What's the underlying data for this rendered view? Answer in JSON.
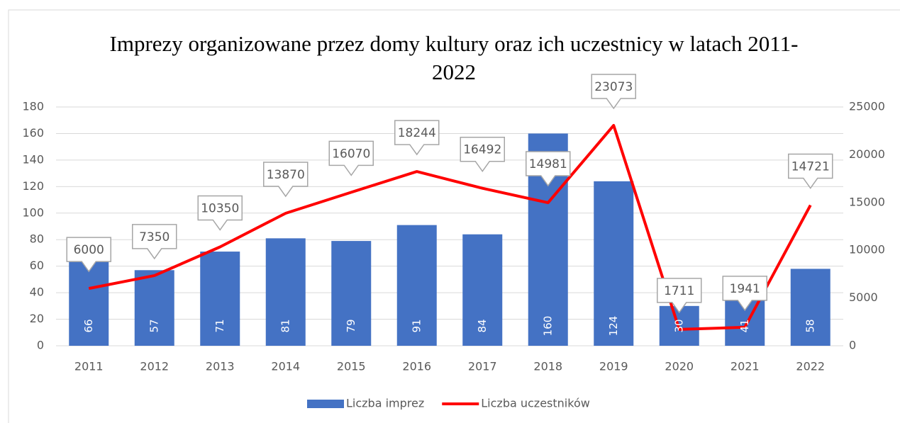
{
  "chart_data": {
    "type": "bar",
    "title": "Imprezy organizowane przez domy kultury oraz ich uczestnicy w latach 2011-2022",
    "categories": [
      "2011",
      "2012",
      "2013",
      "2014",
      "2015",
      "2016",
      "2017",
      "2018",
      "2019",
      "2020",
      "2021",
      "2022"
    ],
    "series": [
      {
        "name": "Liczba imprez",
        "type": "bar",
        "color": "#4472c4",
        "values": [
          66,
          57,
          71,
          81,
          79,
          91,
          84,
          160,
          124,
          30,
          41,
          58
        ]
      },
      {
        "name": "Liczba uczestników",
        "type": "line",
        "axis": "y2",
        "color": "#ff0000",
        "values": [
          6000,
          7350,
          10350,
          13870,
          16070,
          18244,
          16492,
          14981,
          23073,
          1711,
          1941,
          14721
        ]
      }
    ],
    "ylim": [
      0,
      180
    ],
    "yticks": [
      0,
      20,
      40,
      60,
      80,
      100,
      120,
      140,
      160,
      180
    ],
    "y2lim": [
      0,
      25000
    ],
    "y2ticks": [
      0,
      5000,
      10000,
      15000,
      20000,
      25000
    ],
    "grid": true,
    "legend": "bottom"
  }
}
